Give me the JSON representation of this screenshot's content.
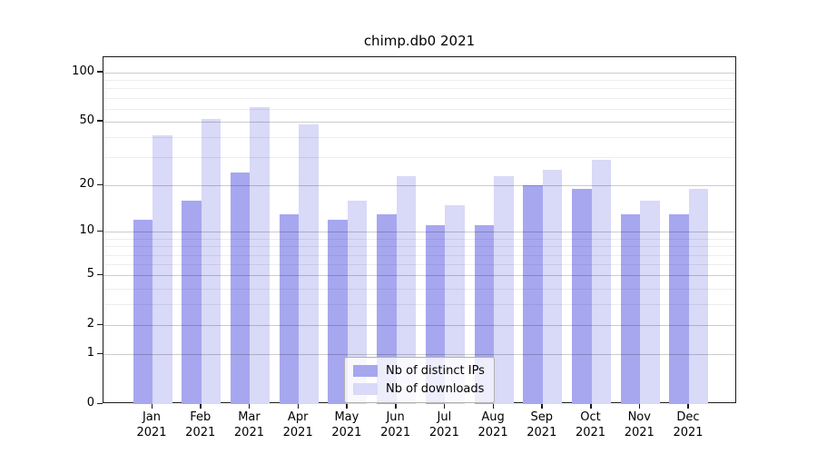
{
  "chart_data": {
    "type": "bar",
    "title": "chimp.db0 2021",
    "categories": [
      {
        "month": "Jan",
        "year": "2021"
      },
      {
        "month": "Feb",
        "year": "2021"
      },
      {
        "month": "Mar",
        "year": "2021"
      },
      {
        "month": "Apr",
        "year": "2021"
      },
      {
        "month": "May",
        "year": "2021"
      },
      {
        "month": "Jun",
        "year": "2021"
      },
      {
        "month": "Jul",
        "year": "2021"
      },
      {
        "month": "Aug",
        "year": "2021"
      },
      {
        "month": "Sep",
        "year": "2021"
      },
      {
        "month": "Oct",
        "year": "2021"
      },
      {
        "month": "Nov",
        "year": "2021"
      },
      {
        "month": "Dec",
        "year": "2021"
      }
    ],
    "series": [
      {
        "name": "Nb of distinct IPs",
        "color": "#a7a7f0",
        "values": [
          12,
          16,
          24,
          13,
          12,
          13,
          11,
          11,
          20,
          19,
          13,
          13
        ]
      },
      {
        "name": "Nb of downloads",
        "color": "#d9d9f8",
        "values": [
          41,
          52,
          61,
          48,
          16,
          23,
          15,
          23,
          25,
          29,
          16,
          19
        ]
      }
    ],
    "y_axis": {
      "scale": "log1p",
      "ticks": [
        100,
        50,
        20,
        10,
        5,
        2,
        1,
        0
      ],
      "minor_gridlines": [
        3,
        4,
        6,
        7,
        8,
        9,
        30,
        40,
        60,
        70,
        80,
        90
      ],
      "max": 124
    },
    "xlabel": "",
    "ylabel": "",
    "grid": "on",
    "legend_position": "bottom-center"
  }
}
